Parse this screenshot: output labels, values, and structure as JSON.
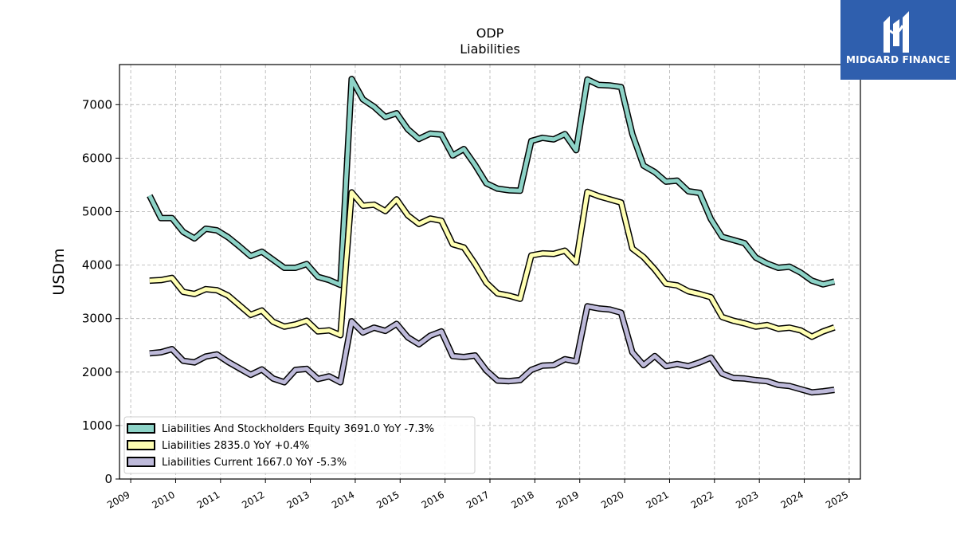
{
  "chart_data": {
    "type": "line",
    "title": "ODP",
    "subtitle": "Liabilities",
    "xlabel": "",
    "ylabel": "USDm",
    "xlim": [
      2008.75,
      2025.25
    ],
    "ylim": [
      0,
      7750
    ],
    "x_ticks": [
      "2009",
      "2010",
      "2011",
      "2012",
      "2013",
      "2014",
      "2015",
      "2016",
      "2017",
      "2018",
      "2019",
      "2020",
      "2021",
      "2022",
      "2023",
      "2024",
      "2025"
    ],
    "y_ticks": [
      "0",
      "1000",
      "2000",
      "3000",
      "4000",
      "5000",
      "6000",
      "7000"
    ],
    "grid": true,
    "legend_position": "lower-left",
    "x": [
      2009.42,
      2009.67,
      2009.92,
      2010.17,
      2010.42,
      2010.67,
      2010.92,
      2011.17,
      2011.42,
      2011.67,
      2011.92,
      2012.17,
      2012.42,
      2012.67,
      2012.92,
      2013.17,
      2013.42,
      2013.67,
      2013.92,
      2014.17,
      2014.42,
      2014.67,
      2014.92,
      2015.17,
      2015.42,
      2015.67,
      2015.92,
      2016.17,
      2016.42,
      2016.67,
      2016.92,
      2017.17,
      2017.42,
      2017.67,
      2017.92,
      2018.17,
      2018.42,
      2018.67,
      2018.92,
      2019.17,
      2019.42,
      2019.67,
      2019.92,
      2020.17,
      2020.42,
      2020.67,
      2020.92,
      2021.17,
      2021.42,
      2021.67,
      2021.92,
      2022.17,
      2022.42,
      2022.67,
      2022.92,
      2023.17,
      2023.42,
      2023.67,
      2023.92,
      2024.17,
      2024.42,
      2024.67
    ],
    "series": [
      {
        "name": "Liabilities And Stockholders Equity",
        "legend_label": "Liabilities And Stockholders Equity  3691.0 YoY -7.3%",
        "color": "#8dd3c7",
        "values": [
          5300,
          4880,
          4880,
          4620,
          4500,
          4680,
          4650,
          4520,
          4350,
          4170,
          4250,
          4100,
          3950,
          3950,
          4020,
          3780,
          3720,
          3630,
          7480,
          7100,
          6960,
          6770,
          6840,
          6540,
          6360,
          6460,
          6440,
          6050,
          6170,
          5870,
          5530,
          5430,
          5400,
          5390,
          6320,
          6380,
          6350,
          6450,
          6150,
          7470,
          7370,
          7360,
          7330,
          6450,
          5860,
          5740,
          5560,
          5580,
          5380,
          5350,
          4860,
          4530,
          4470,
          4410,
          4140,
          4030,
          3950,
          3970,
          3860,
          3710,
          3640,
          3691
        ]
      },
      {
        "name": "Liabilities",
        "legend_label": "Liabilities  2835.0 YoY +0.4%",
        "color": "#ffffb3",
        "values": [
          3710,
          3720,
          3760,
          3500,
          3460,
          3550,
          3530,
          3430,
          3250,
          3070,
          3150,
          2940,
          2850,
          2890,
          2960,
          2760,
          2780,
          2690,
          5360,
          5110,
          5130,
          5010,
          5230,
          4930,
          4770,
          4870,
          4830,
          4390,
          4330,
          4020,
          3670,
          3470,
          3430,
          3370,
          4180,
          4220,
          4210,
          4270,
          4050,
          5370,
          5290,
          5230,
          5170,
          4310,
          4150,
          3920,
          3650,
          3620,
          3510,
          3460,
          3400,
          3030,
          2960,
          2910,
          2850,
          2880,
          2810,
          2830,
          2780,
          2660,
          2760,
          2835
        ]
      },
      {
        "name": "Liabilities Current",
        "legend_label": "Liabilities Current  1667.0 YoY -5.3%",
        "color": "#bebada",
        "values": [
          2350,
          2370,
          2430,
          2210,
          2180,
          2290,
          2330,
          2190,
          2070,
          1950,
          2050,
          1880,
          1810,
          2040,
          2060,
          1870,
          1920,
          1810,
          2950,
          2740,
          2830,
          2770,
          2900,
          2650,
          2520,
          2680,
          2760,
          2300,
          2280,
          2310,
          2030,
          1840,
          1830,
          1850,
          2040,
          2120,
          2130,
          2240,
          2200,
          3230,
          3190,
          3170,
          3110,
          2370,
          2130,
          2300,
          2110,
          2150,
          2110,
          2180,
          2270,
          1970,
          1890,
          1880,
          1850,
          1830,
          1760,
          1740,
          1680,
          1620,
          1640,
          1667
        ]
      }
    ]
  },
  "logo": {
    "text": "MIDGARD FINANCE"
  }
}
